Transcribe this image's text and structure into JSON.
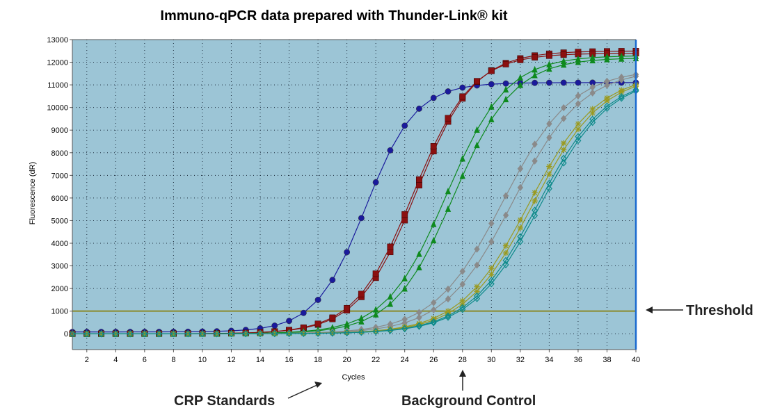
{
  "title": "Immuno-qPCR data prepared with Thunder-Link® kit",
  "annotations": {
    "threshold": "Threshold",
    "crp_standards": "CRP Standards",
    "background_control": "Background Control"
  },
  "chart_data": {
    "type": "line",
    "xlabel": "Cycles",
    "ylabel": "Fluorescence (dR)",
    "xlim": [
      1,
      40
    ],
    "ylim": [
      -700,
      13000
    ],
    "xticks": [
      2,
      4,
      6,
      8,
      10,
      12,
      14,
      16,
      18,
      20,
      22,
      24,
      26,
      28,
      30,
      32,
      34,
      36,
      38,
      40
    ],
    "yticks": [
      0,
      1000,
      2000,
      3000,
      4000,
      5000,
      6000,
      7000,
      8000,
      9000,
      10000,
      11000,
      12000,
      13000
    ],
    "threshold": 1000,
    "grid": true,
    "background_color": "#9cc5d6",
    "threshold_color": "#8a8a2a",
    "series": [
      {
        "color": "#1a1a9c",
        "marker": "circle",
        "model": {
          "base": 80,
          "max": 11100,
          "mid": 21.3,
          "k": 0.58
        }
      },
      {
        "color": "#8b1010",
        "marker": "square",
        "model": {
          "base": 0,
          "max": 12500,
          "mid": 24.8,
          "k": 0.5
        }
      },
      {
        "color": "#8b1010",
        "marker": "square",
        "model": {
          "base": 0,
          "max": 12400,
          "mid": 24.6,
          "k": 0.5
        }
      },
      {
        "color": "#0e8a1e",
        "marker": "triangle",
        "model": {
          "base": 0,
          "max": 12300,
          "mid": 26.9,
          "k": 0.48
        }
      },
      {
        "color": "#0e8a1e",
        "marker": "triangle",
        "model": {
          "base": 0,
          "max": 12200,
          "mid": 27.4,
          "k": 0.48
        }
      },
      {
        "color": "#8a8a8a",
        "marker": "diamond",
        "model": {
          "base": 0,
          "max": 11700,
          "mid": 30.8,
          "k": 0.42
        }
      },
      {
        "color": "#8a8a8a",
        "marker": "diamond",
        "model": {
          "base": 0,
          "max": 11700,
          "mid": 31.5,
          "k": 0.42
        }
      },
      {
        "color": "#9a9a20",
        "marker": "star",
        "model": {
          "base": 0,
          "max": 11500,
          "mid": 32.6,
          "k": 0.42
        }
      },
      {
        "color": "#9a9a20",
        "marker": "star",
        "model": {
          "base": 0,
          "max": 11500,
          "mid": 32.9,
          "k": 0.42
        }
      },
      {
        "color": "#0e8a8a",
        "marker": "diamond-open",
        "model": {
          "base": 0,
          "max": 11400,
          "mid": 33.2,
          "k": 0.42
        }
      },
      {
        "color": "#0e8a8a",
        "marker": "diamond-open",
        "model": {
          "base": 0,
          "max": 11400,
          "mid": 33.4,
          "k": 0.42
        }
      }
    ]
  }
}
